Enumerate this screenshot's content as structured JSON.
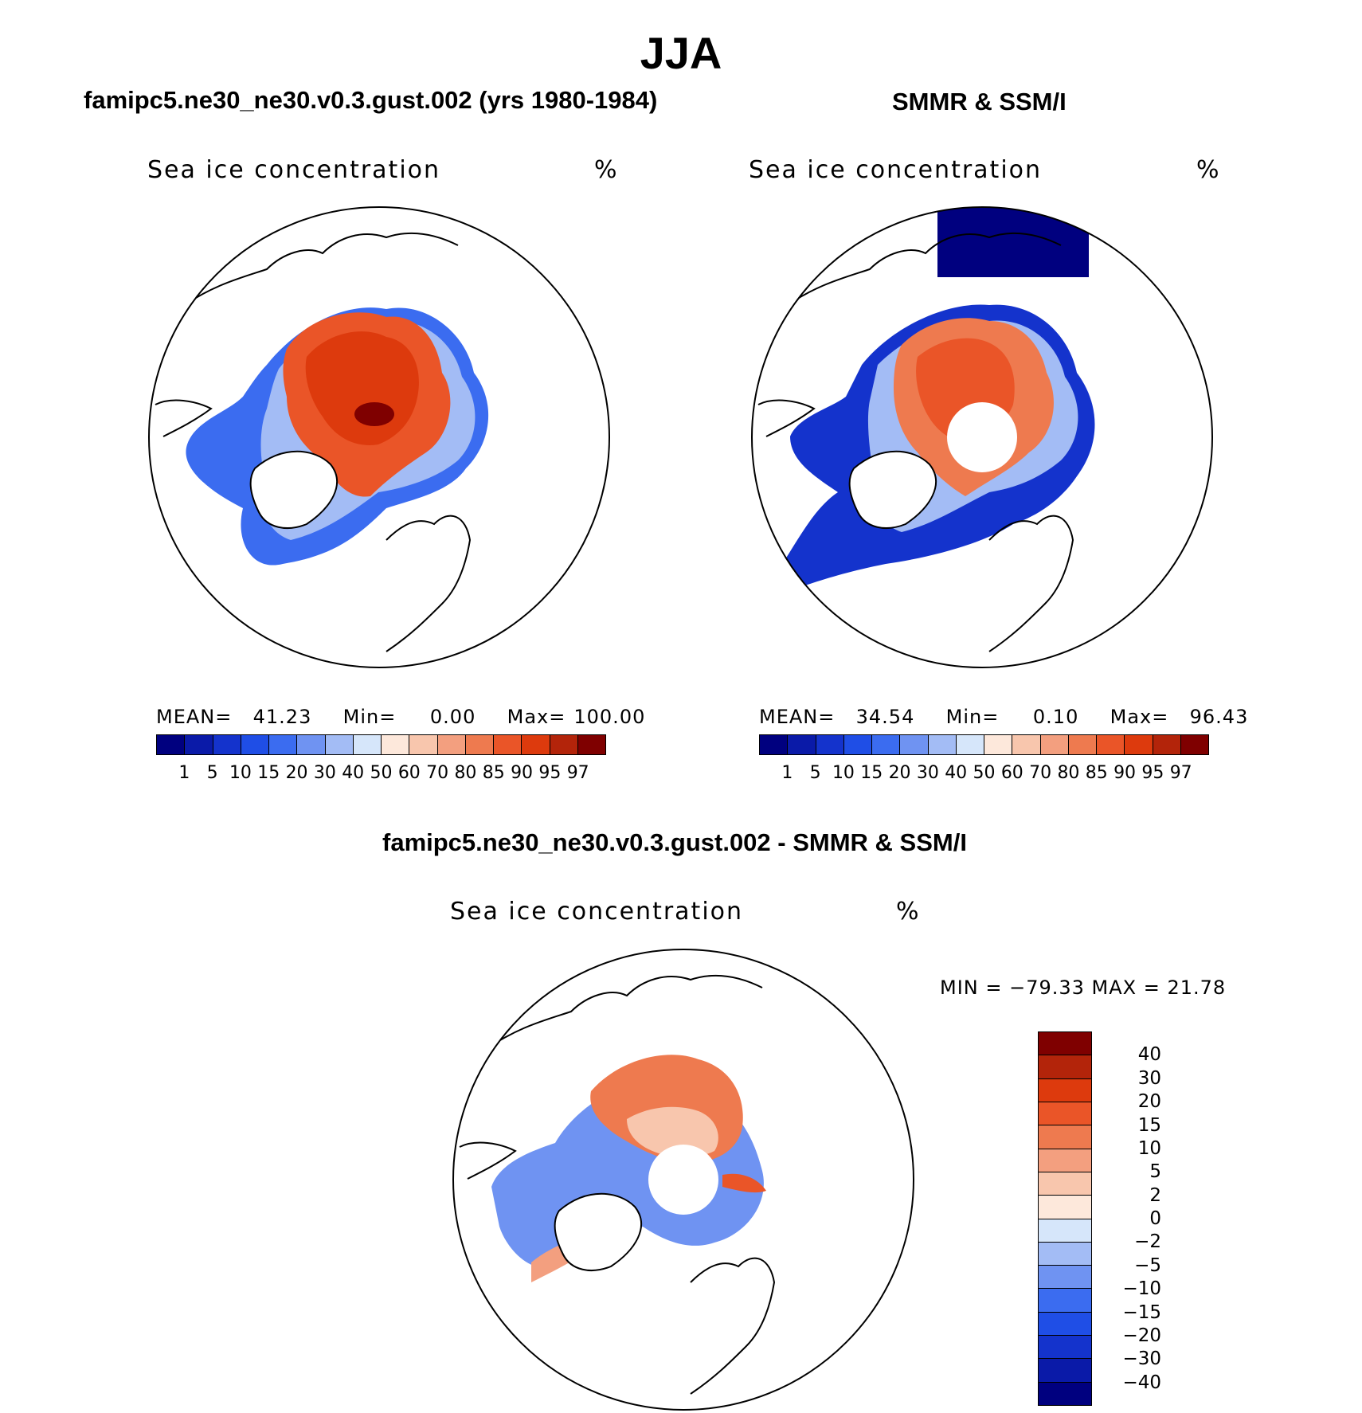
{
  "main_title": "JJA",
  "panels": {
    "model": {
      "title": "famipc5.ne30_ne30.v0.3.gust.002 (yrs 1980-1984)",
      "var_label": "Sea ice concentration",
      "unit": "%",
      "mean_label": "MEAN=",
      "mean_value": "41.23",
      "min_label": "Min=",
      "min_value": "0.00",
      "max_label": "Max=",
      "max_value": "100.00"
    },
    "obs": {
      "title": "SMMR & SSM/I",
      "var_label": "Sea ice concentration",
      "unit": "%",
      "mean_label": "MEAN=",
      "mean_value": "34.54",
      "min_label": "Min=",
      "min_value": "0.10",
      "max_label": "Max=",
      "max_value": "96.43"
    },
    "diff": {
      "title": "famipc5.ne30_ne30.v0.3.gust.002 - SMMR & SSM/I",
      "var_label": "Sea ice concentration",
      "unit": "%",
      "range_text": "MIN = −79.33 MAX =   21.78"
    }
  },
  "colorbar_abs": {
    "colors": [
      "#00007f",
      "#0a1aa8",
      "#1433cc",
      "#1f4ee6",
      "#3b6cf0",
      "#6f93f2",
      "#a3bcf5",
      "#d6e6fa",
      "#fde8db",
      "#f8c6ad",
      "#f39f7f",
      "#ee7a4f",
      "#ea5528",
      "#dd3a0d",
      "#b3240a",
      "#7f0000"
    ],
    "labels": [
      "1",
      "5",
      "10",
      "15",
      "20",
      "30",
      "40",
      "50",
      "60",
      "70",
      "80",
      "85",
      "90",
      "95",
      "97"
    ]
  },
  "colorbar_diff": {
    "colors": [
      "#7f0000",
      "#b3240a",
      "#dd3a0d",
      "#ea5528",
      "#ee7a4f",
      "#f39f7f",
      "#f8c6ad",
      "#fde8db",
      "#d6e6fa",
      "#a3bcf5",
      "#6f93f2",
      "#3b6cf0",
      "#1f4ee6",
      "#1433cc",
      "#0a1aa8",
      "#00007f"
    ],
    "labels": [
      "40",
      "30",
      "20",
      "15",
      "10",
      "5",
      "2",
      "0",
      "−2",
      "−5",
      "−10",
      "−15",
      "−20",
      "−30",
      "−40"
    ]
  }
}
